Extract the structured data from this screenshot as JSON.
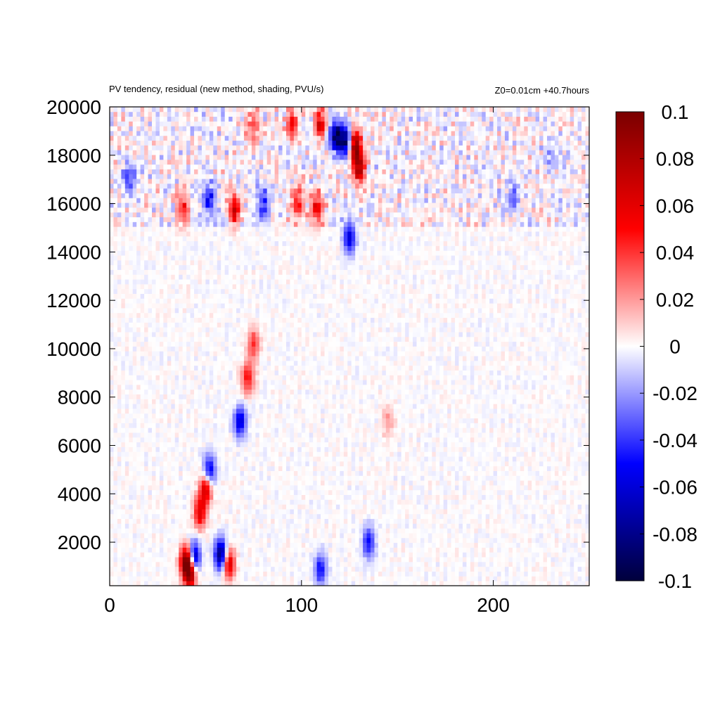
{
  "chart_data": {
    "type": "heatmap",
    "title": "PV tendency, residual (new method, shading, PVU/s)",
    "annotation": "Z0=0.01cm   +40.7hours",
    "xlim": [
      0,
      250
    ],
    "ylim": [
      200,
      20000
    ],
    "x_ticks": [
      0,
      100,
      200
    ],
    "y_ticks": [
      2000,
      4000,
      6000,
      8000,
      10000,
      12000,
      14000,
      16000,
      18000,
      20000
    ],
    "colorbar": {
      "min": -0.1,
      "max": 0.1,
      "ticks": [
        -0.1,
        -0.08,
        -0.06,
        -0.04,
        -0.02,
        0,
        0.02,
        0.04,
        0.06,
        0.08,
        0.1
      ],
      "tick_labels": [
        "-0.1",
        "-0.08",
        "-0.06",
        "-0.04",
        "-0.02",
        "0",
        "0.02",
        "0.04",
        "0.06",
        "0.08",
        "0.1"
      ],
      "colors": [
        "#00003c",
        "#0000ff",
        "#ffffff",
        "#ff0000",
        "#7a0000"
      ]
    },
    "grid": false,
    "legend": "colorbar-right",
    "features": [
      {
        "x": 40,
        "y": 1200,
        "value": 0.1
      },
      {
        "x": 42,
        "y": 700,
        "value": 0.08
      },
      {
        "x": 44,
        "y": 1400,
        "value": -0.08
      },
      {
        "x": 47,
        "y": 3200,
        "value": 0.06
      },
      {
        "x": 50,
        "y": 4200,
        "value": 0.07
      },
      {
        "x": 52,
        "y": 5000,
        "value": -0.06
      },
      {
        "x": 58,
        "y": 1500,
        "value": -0.09
      },
      {
        "x": 62,
        "y": 1100,
        "value": 0.07
      },
      {
        "x": 68,
        "y": 7000,
        "value": -0.06
      },
      {
        "x": 72,
        "y": 8800,
        "value": 0.05
      },
      {
        "x": 75,
        "y": 10200,
        "value": 0.04
      },
      {
        "x": 38,
        "y": 15800,
        "value": 0.05
      },
      {
        "x": 52,
        "y": 16200,
        "value": -0.05
      },
      {
        "x": 65,
        "y": 15800,
        "value": 0.06
      },
      {
        "x": 80,
        "y": 16000,
        "value": -0.04
      },
      {
        "x": 98,
        "y": 16000,
        "value": 0.05
      },
      {
        "x": 108,
        "y": 15800,
        "value": 0.06
      },
      {
        "x": 118,
        "y": 18800,
        "value": -0.09
      },
      {
        "x": 123,
        "y": 18600,
        "value": -0.08
      },
      {
        "x": 128,
        "y": 18400,
        "value": 0.09
      },
      {
        "x": 130,
        "y": 17500,
        "value": 0.08
      },
      {
        "x": 125,
        "y": 14600,
        "value": -0.06
      },
      {
        "x": 110,
        "y": 19300,
        "value": 0.06
      },
      {
        "x": 95,
        "y": 19300,
        "value": 0.05
      },
      {
        "x": 75,
        "y": 19200,
        "value": 0.04
      },
      {
        "x": 10,
        "y": 17000,
        "value": -0.04
      },
      {
        "x": 110,
        "y": 900,
        "value": -0.05
      },
      {
        "x": 135,
        "y": 2000,
        "value": -0.05
      },
      {
        "x": 145,
        "y": 7000,
        "value": 0.02
      },
      {
        "x": 210,
        "y": 16300,
        "value": -0.03
      },
      {
        "x": 230,
        "y": 18000,
        "value": -0.02
      }
    ]
  }
}
